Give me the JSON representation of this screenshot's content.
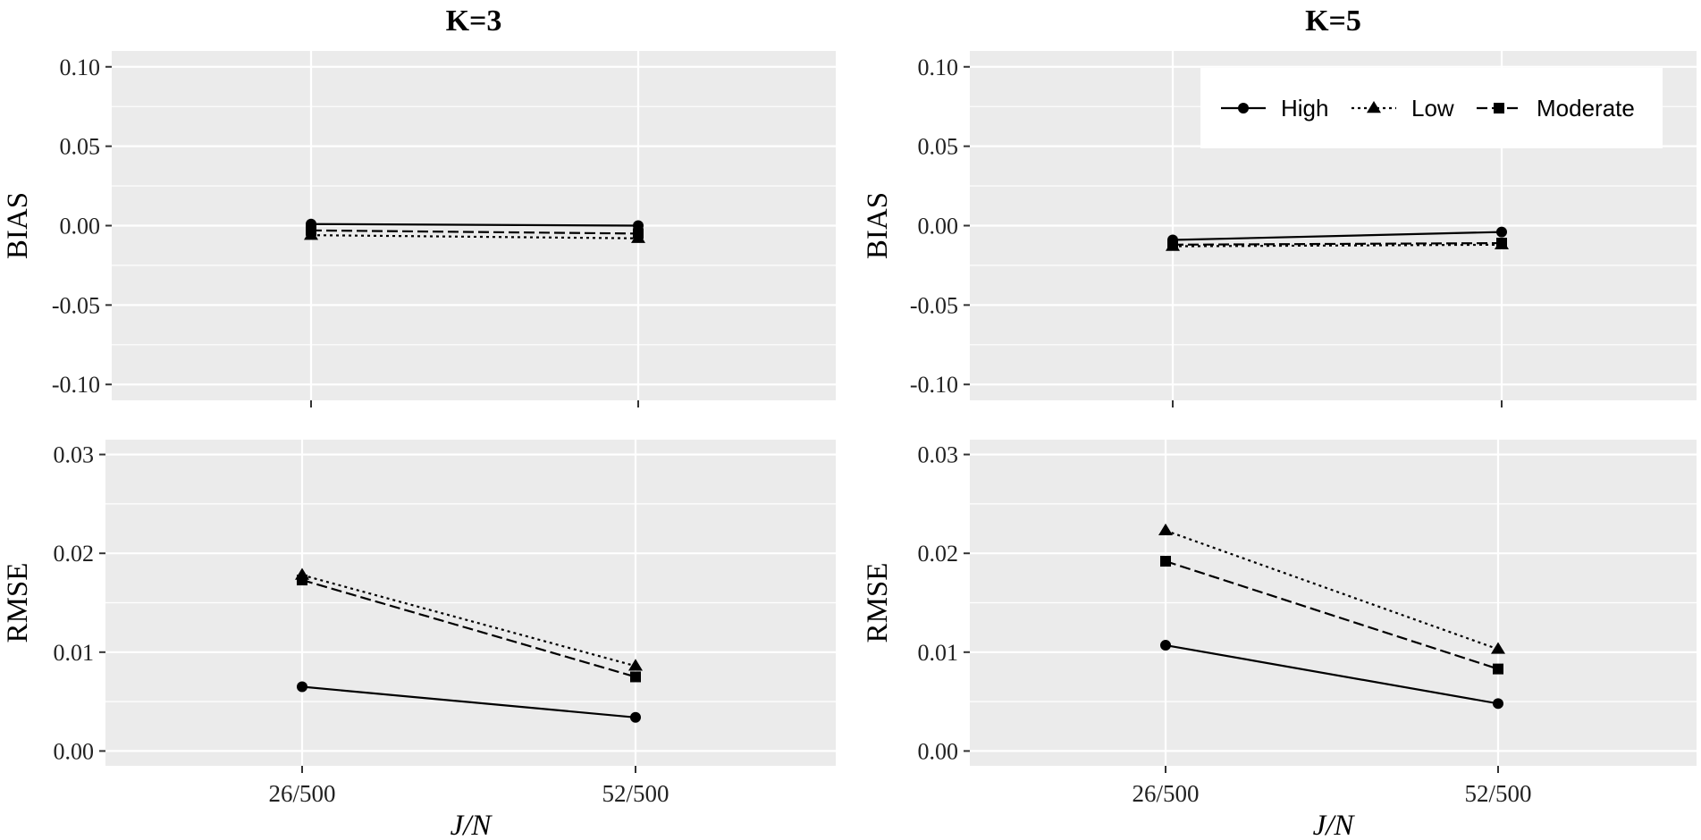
{
  "figure": {
    "col_titles": [
      "K=3",
      "K=5"
    ],
    "xlabel": "J/N",
    "ylabels": [
      "BIAS",
      "RMSE"
    ],
    "categories": [
      "26/500",
      "52/500"
    ]
  },
  "legend": {
    "position": "top-right of K=5 BIAS panel",
    "entries": [
      {
        "name": "High",
        "marker": "circle",
        "dash": "solid"
      },
      {
        "name": "Low",
        "marker": "triangle",
        "dash": "dotted"
      },
      {
        "name": "Moderate",
        "marker": "square",
        "dash": "dashed"
      }
    ]
  },
  "chart_data": [
    {
      "type": "line",
      "title": "K=3",
      "ylabel": "BIAS",
      "xlabel": "",
      "categories": [
        "26/500",
        "52/500"
      ],
      "ylim": [
        -0.11,
        0.11
      ],
      "yticks": [
        -0.1,
        -0.05,
        0.0,
        0.05,
        0.1
      ],
      "ytick_labels": [
        "-0.10",
        "-0.05",
        "0.00",
        "0.05",
        "0.10"
      ],
      "series": [
        {
          "name": "High",
          "values": [
            0.001,
            0.0
          ]
        },
        {
          "name": "Low",
          "values": [
            -0.006,
            -0.008
          ]
        },
        {
          "name": "Moderate",
          "values": [
            -0.003,
            -0.005
          ]
        }
      ]
    },
    {
      "type": "line",
      "title": "K=5",
      "ylabel": "BIAS",
      "xlabel": "",
      "categories": [
        "26/500",
        "52/500"
      ],
      "ylim": [
        -0.11,
        0.11
      ],
      "yticks": [
        -0.1,
        -0.05,
        0.0,
        0.05,
        0.1
      ],
      "ytick_labels": [
        "-0.10",
        "-0.05",
        "0.00",
        "0.05",
        "0.10"
      ],
      "series": [
        {
          "name": "High",
          "values": [
            -0.009,
            -0.004
          ]
        },
        {
          "name": "Low",
          "values": [
            -0.013,
            -0.012
          ]
        },
        {
          "name": "Moderate",
          "values": [
            -0.012,
            -0.011
          ]
        }
      ]
    },
    {
      "type": "line",
      "title": "",
      "ylabel": "RMSE",
      "xlabel": "J/N",
      "categories": [
        "26/500",
        "52/500"
      ],
      "ylim": [
        -0.0015,
        0.0315
      ],
      "yticks": [
        0.0,
        0.01,
        0.02,
        0.03
      ],
      "ytick_labels": [
        "0.00",
        "0.01",
        "0.02",
        "0.03"
      ],
      "series": [
        {
          "name": "High",
          "values": [
            0.0065,
            0.0034
          ]
        },
        {
          "name": "Low",
          "values": [
            0.0178,
            0.0086
          ]
        },
        {
          "name": "Moderate",
          "values": [
            0.0173,
            0.0075
          ]
        }
      ]
    },
    {
      "type": "line",
      "title": "",
      "ylabel": "RMSE",
      "xlabel": "J/N",
      "categories": [
        "26/500",
        "52/500"
      ],
      "ylim": [
        -0.0015,
        0.0315
      ],
      "yticks": [
        0.0,
        0.01,
        0.02,
        0.03
      ],
      "ytick_labels": [
        "0.00",
        "0.01",
        "0.02",
        "0.03"
      ],
      "series": [
        {
          "name": "High",
          "values": [
            0.0107,
            0.0048
          ]
        },
        {
          "name": "Low",
          "values": [
            0.0223,
            0.0103
          ]
        },
        {
          "name": "Moderate",
          "values": [
            0.0192,
            0.0083
          ]
        }
      ]
    }
  ]
}
